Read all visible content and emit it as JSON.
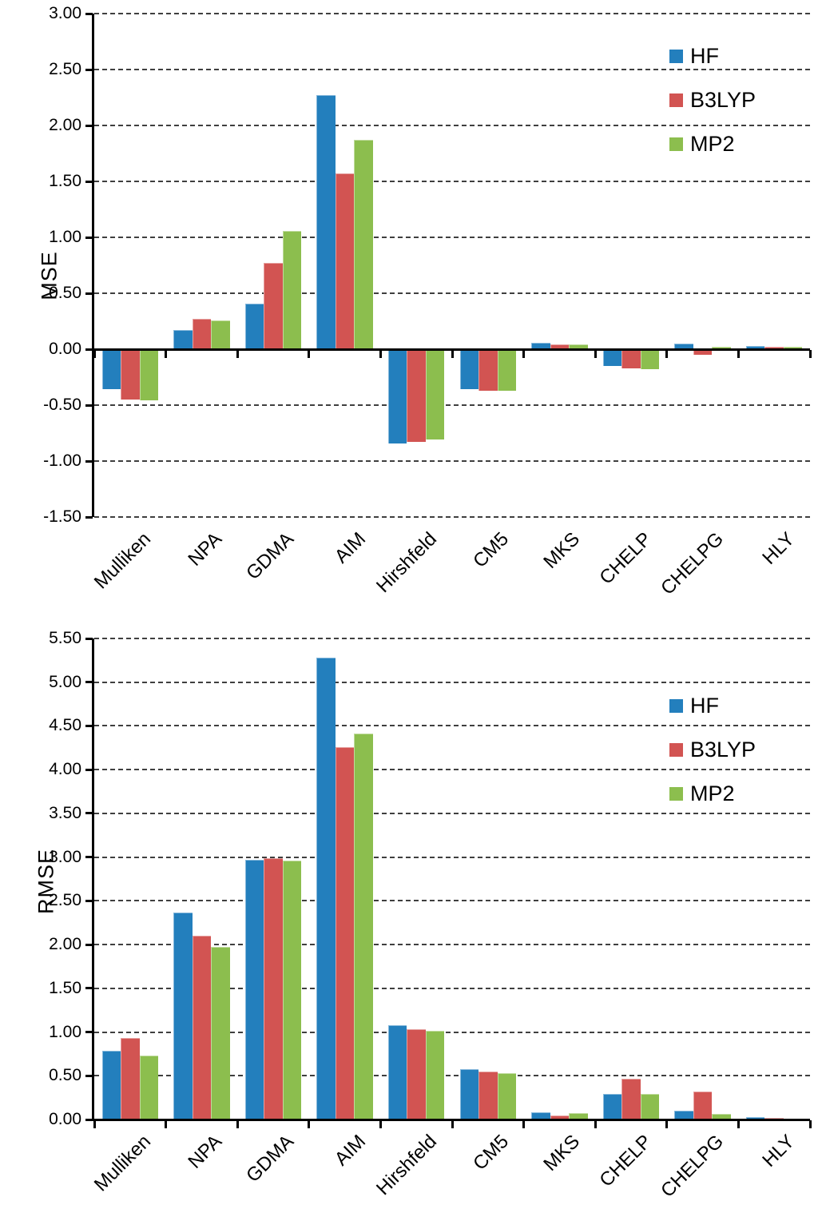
{
  "figure": {
    "background": "#ffffff",
    "description": "Two stacked grouped bar charts comparing charge models",
    "axis_color": "#000000",
    "gridline_style": "dashed",
    "gridline_color": "#3f3f3f"
  },
  "legend": {
    "entries": [
      "HF",
      "B3LYP",
      "MP2"
    ],
    "position": "upper right inside plot"
  },
  "chart_data": [
    {
      "type": "bar",
      "title": "",
      "xlabel": "",
      "ylabel": "MSE",
      "ylim": [
        -1.5,
        3.0
      ],
      "ytick_step": 0.5,
      "grid": "horizontal dashed",
      "legend_position": "upper right",
      "categories": [
        "Mulliken",
        "NPA",
        "GDMA",
        "AIM",
        "Hirshfeld",
        "CM5",
        "MKS",
        "CHELP",
        "CHELPG",
        "HLY"
      ],
      "series": [
        {
          "name": "HF",
          "color": "#237FBD",
          "values": [
            -0.36,
            0.17,
            0.41,
            2.27,
            -0.84,
            -0.36,
            0.06,
            -0.15,
            0.05,
            0.03
          ]
        },
        {
          "name": "B3LYP",
          "color": "#D25452",
          "values": [
            -0.45,
            0.27,
            0.77,
            1.57,
            -0.83,
            -0.37,
            0.04,
            -0.17,
            -0.05,
            0.02
          ]
        },
        {
          "name": "MP2",
          "color": "#8CBE4E",
          "values": [
            -0.46,
            0.26,
            1.06,
            1.87,
            -0.81,
            -0.37,
            0.04,
            -0.18,
            0.02,
            0.02
          ]
        }
      ]
    },
    {
      "type": "bar",
      "title": "",
      "xlabel": "",
      "ylabel": "RMSE",
      "ylim": [
        0.0,
        5.5
      ],
      "ytick_step": 0.5,
      "grid": "horizontal dashed",
      "legend_position": "upper right",
      "categories": [
        "Mulliken",
        "NPA",
        "GDMA",
        "AIM",
        "Hirshfeld",
        "CM5",
        "MKS",
        "CHELP",
        "CHELPG",
        "HLY"
      ],
      "series": [
        {
          "name": "HF",
          "color": "#237FBD",
          "values": [
            0.79,
            2.37,
            2.97,
            5.28,
            1.08,
            0.58,
            0.08,
            0.29,
            0.1,
            0.03
          ]
        },
        {
          "name": "B3LYP",
          "color": "#D25452",
          "values": [
            0.93,
            2.1,
            2.99,
            4.26,
            1.03,
            0.55,
            0.05,
            0.47,
            0.32,
            0.02
          ]
        },
        {
          "name": "MP2",
          "color": "#8CBE4E",
          "values": [
            0.73,
            1.97,
            2.96,
            4.41,
            1.01,
            0.53,
            0.07,
            0.29,
            0.06,
            0.01
          ]
        }
      ]
    }
  ]
}
